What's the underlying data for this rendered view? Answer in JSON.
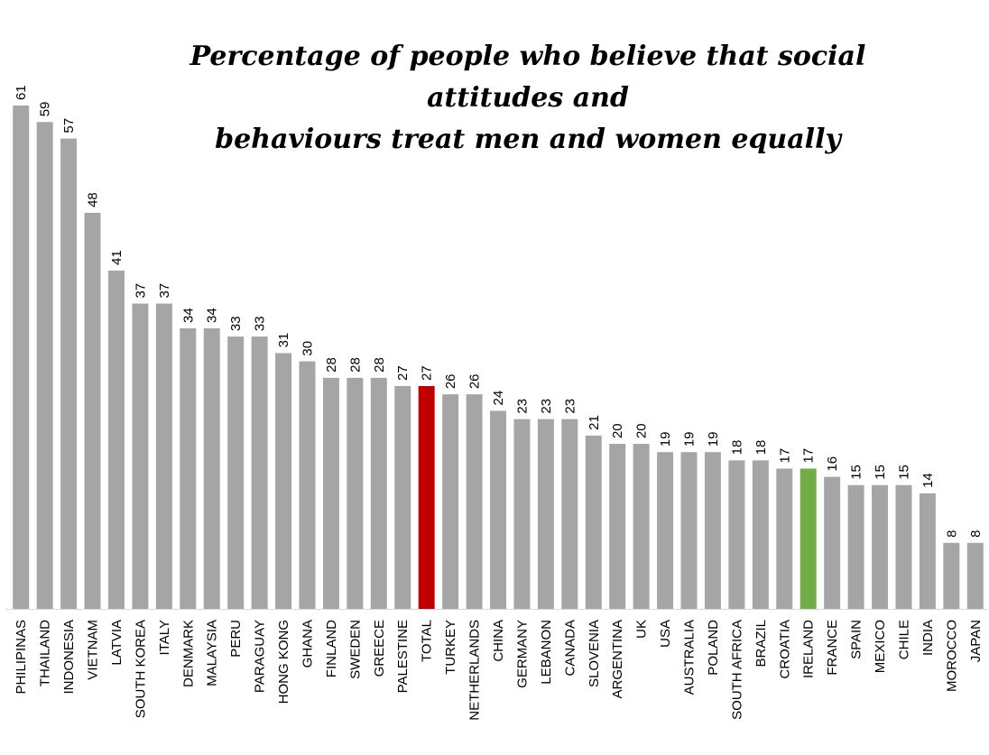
{
  "chart_data": {
    "type": "bar",
    "title_line1": "Percentage of people who believe that social attitudes and",
    "title_line2": "behaviours treat men and women equally",
    "categories": [
      "PHILIPINAS",
      "THAILAND",
      "INDONESIA",
      "VIETNAM",
      "LATVIA",
      "SOUTH KOREA",
      "ITALY",
      "DENMARK",
      "MALAYSIA",
      "PERU",
      "PARAGUAY",
      "HONG KONG",
      "GHANA",
      "FINLAND",
      "SWEDEN",
      "GREECE",
      "PALESTINE",
      "TOTAL",
      "TURKEY",
      "NETHERLANDS",
      "CHINA",
      "GERMANY",
      "LEBANON",
      "CANADA",
      "SLOVENIA",
      "ARGENTINA",
      "UK",
      "USA",
      "AUSTRALIA",
      "POLAND",
      "SOUTH AFRICA",
      "BRAZIL",
      "CROATIA",
      "IRELAND",
      "FRANCE",
      "SPAIN",
      "MEXICO",
      "CHILE",
      "INDIA",
      "MOROCCO",
      "JAPAN"
    ],
    "values": [
      61,
      59,
      57,
      48,
      41,
      37,
      37,
      34,
      34,
      33,
      33,
      31,
      30,
      28,
      28,
      28,
      27,
      27,
      26,
      26,
      24,
      23,
      23,
      23,
      21,
      20,
      20,
      19,
      19,
      19,
      18,
      18,
      17,
      17,
      16,
      15,
      15,
      15,
      14,
      8,
      8
    ],
    "data_labels": [
      "61",
      "59",
      "57",
      "48",
      "41",
      "37",
      "37",
      "34",
      "34",
      "33",
      "33",
      "31",
      "30",
      "28",
      "28",
      "28",
      "27",
      "27",
      "26",
      "26",
      "24",
      "23",
      "23",
      "23",
      "21",
      "20",
      "20",
      "19",
      "19",
      "19",
      "18",
      "18",
      "17",
      "17",
      "16",
      "15",
      "15",
      "15",
      "14",
      "8",
      "8"
    ],
    "ylim": [
      0,
      61
    ],
    "grid": false,
    "legend": "none",
    "colors": {
      "default": "#a5a5a5",
      "highlight_total": "#c00000",
      "highlight_ireland": "#70ad47",
      "axis": "#d9d9d9"
    },
    "highlights": {
      "TOTAL": "#c00000",
      "IRELAND": "#70ad47"
    }
  }
}
